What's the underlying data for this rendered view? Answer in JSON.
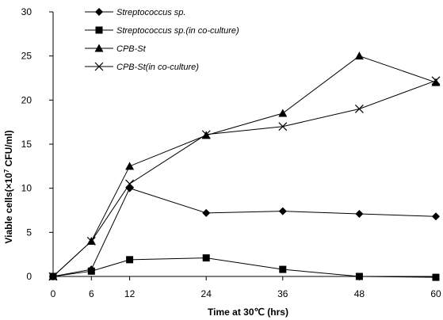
{
  "chart_data": {
    "type": "line",
    "x": [
      0,
      6,
      12,
      24,
      36,
      48,
      60
    ],
    "xlim": [
      0,
      60
    ],
    "ylim": [
      0,
      30
    ],
    "xticks": [
      0,
      6,
      12,
      24,
      36,
      48,
      60
    ],
    "yticks": [
      0,
      5,
      10,
      15,
      20,
      25,
      30
    ],
    "xlabel": "Time at 30℃ (hrs)",
    "ylabel_prefix": "Viable cells(×10",
    "ylabel_exp": "7",
    "ylabel_suffix": " CFU/ml)",
    "grid": false,
    "legend_position": "top-left",
    "series": [
      {
        "name": "Streptococcus sp.",
        "marker": "diamond",
        "values": [
          0,
          0.8,
          10.0,
          7.2,
          7.4,
          7.1,
          6.8
        ]
      },
      {
        "name": "Streptococcus sp.(in co-culture)",
        "marker": "square",
        "values": [
          0,
          0.6,
          1.9,
          2.1,
          0.8,
          0.0,
          -0.1
        ]
      },
      {
        "name": "CPB-St",
        "marker": "triangle",
        "values": [
          0,
          4.0,
          12.5,
          16.0,
          18.5,
          25.0,
          22.0
        ]
      },
      {
        "name": "CPB-St(in co-culture)",
        "marker": "cross",
        "values": [
          0,
          4.0,
          10.5,
          16.1,
          17.0,
          19.0,
          22.2
        ]
      }
    ]
  }
}
